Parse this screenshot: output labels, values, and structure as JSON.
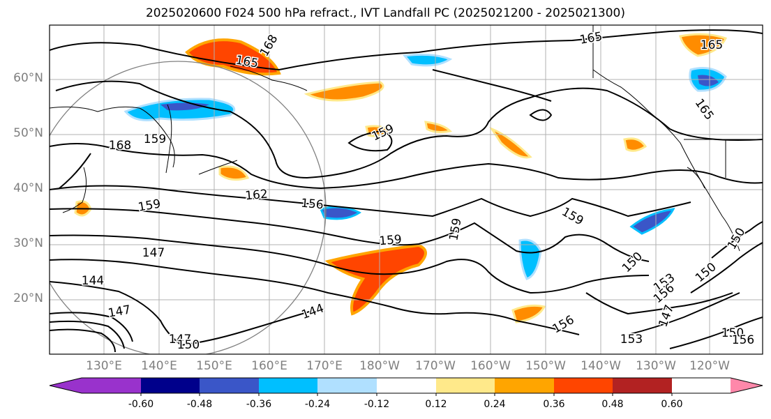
{
  "title": "2025020600 F024 500 hPa refract., IVT Landfall PC (2025021200 - 2025021300)",
  "map": {
    "lat_labels": [
      "60°N",
      "50°N",
      "40°N",
      "30°N",
      "20°N"
    ],
    "lon_labels": [
      "130°E",
      "140°E",
      "150°E",
      "160°E",
      "170°E",
      "180°W",
      "170°W",
      "160°W",
      "150°W",
      "140°W",
      "130°W",
      "120°W"
    ],
    "contour_labels": [
      "168",
      "165",
      "165",
      "165",
      "168",
      "159",
      "162",
      "156",
      "159",
      "159",
      "159",
      "159",
      "147",
      "144",
      "147",
      "144",
      "150",
      "147",
      "150",
      "153",
      "156",
      "150",
      "147",
      "156",
      "153",
      "150",
      "150",
      "156",
      "159",
      "165"
    ],
    "colors": {
      "gridline": "#b0b0b0",
      "contour": "#000000",
      "coastline": "#000000"
    }
  },
  "colorbar": {
    "tick_labels": [
      "-0.60",
      "-0.48",
      "-0.36",
      "-0.24",
      "-0.12",
      "0.12",
      "0.24",
      "0.36",
      "0.48",
      "0.60"
    ],
    "colors": [
      "#9932cc",
      "#00008b",
      "#3a56c8",
      "#00bfff",
      "#b0e0ff",
      "#ffffff",
      "#ffe98a",
      "#ffa500",
      "#ff4500",
      "#b22222",
      "#ff88aa"
    ]
  }
}
